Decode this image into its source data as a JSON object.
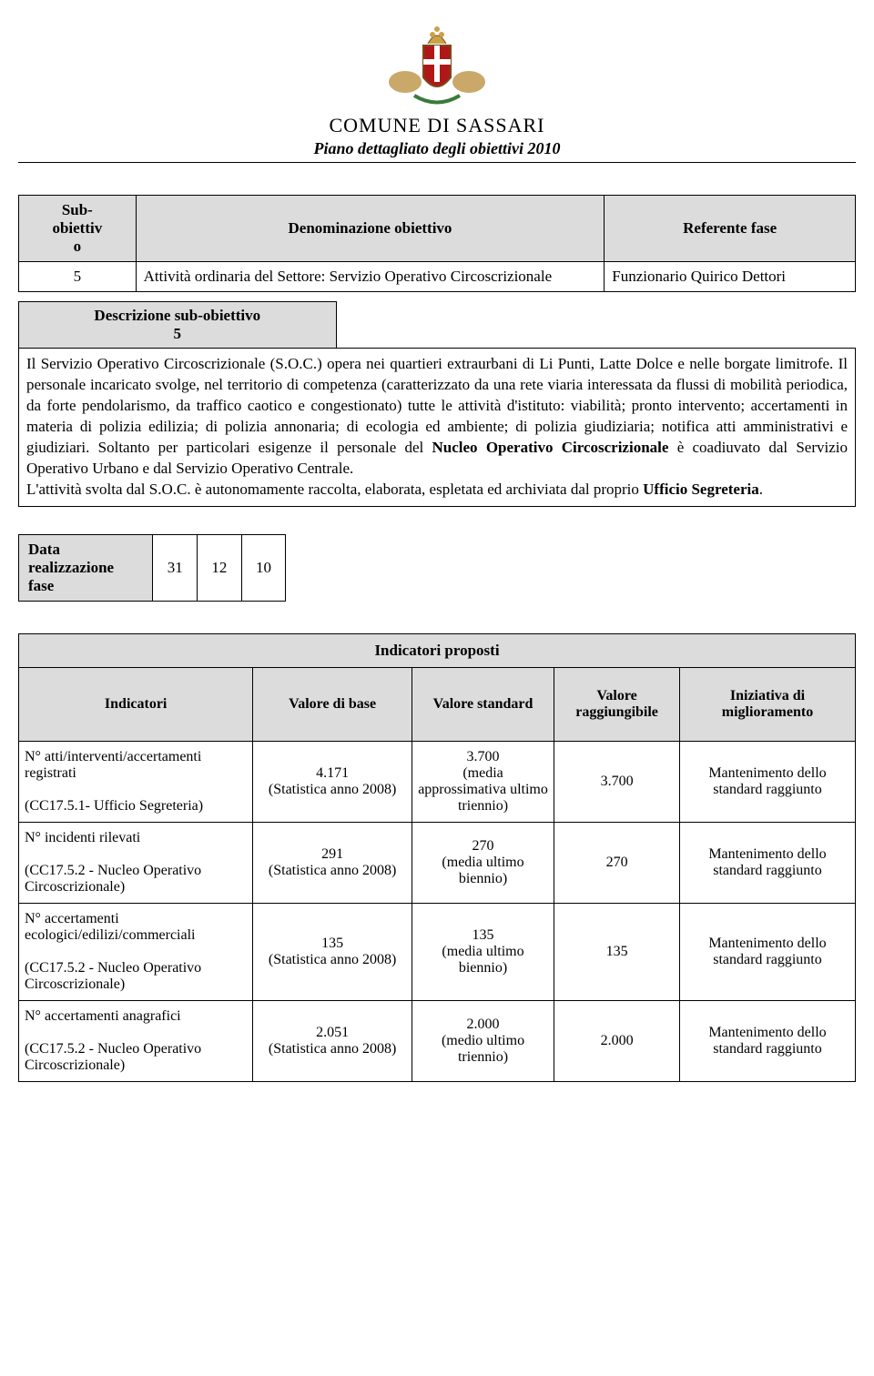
{
  "header": {
    "org": "COMUNE  DI  SASSARI",
    "subtitle": "Piano dettagliato degli obiettivi 2010"
  },
  "objective_table": {
    "headers": [
      "Sub-obiettivo",
      "Denominazione obiettivo",
      "Referente fase"
    ],
    "row": {
      "num": "5",
      "denom": "Attività ordinaria del Settore: Servizio Operativo Circoscrizionale",
      "ref": "Funzionario Quirico Dettori"
    }
  },
  "description": {
    "header": "Descrizione sub-obiettivo 5",
    "body_parts": {
      "p1a": "Il Servizio Operativo Circoscrizionale (S.O.C.) opera nei quartieri extraurbani di Li Punti, Latte Dolce e nelle borgate limitrofe. Il personale incaricato svolge, nel territorio di competenza (caratterizzato da una rete viaria interessata da flussi di mobilità periodica, da forte pendolarismo, da traffico caotico e congestionato) tutte le attività d'istituto: viabilità; pronto intervento; accertamenti in materia di polizia edilizia; di polizia annonaria; di ecologia ed ambiente; di polizia giudiziaria; notifica atti amministrativi e giudiziari. Soltanto per particolari esigenze il personale del ",
      "b1": "Nucleo Operativo Circoscrizionale",
      "p1b": " è coadiuvato dal Servizio Operativo Urbano e dal Servizio Operativo Centrale.",
      "p2a": "L'attività svolta dal S.O.C. è autonomamente raccolta, elaborata, espletata ed archiviata dal proprio ",
      "b2": "Ufficio Segreteria",
      "p2b": "."
    }
  },
  "date_box": {
    "label": "Data realizzazione fase",
    "d": "31",
    "m": "12",
    "y": "10"
  },
  "indicators": {
    "section_title": "Indicatori proposti",
    "columns": [
      "Indicatori",
      "Valore di base",
      "Valore standard",
      "Valore raggiungibile",
      "Iniziativa di miglioramento"
    ],
    "rows": [
      {
        "name_top": "N° atti/interventi/accertamenti registrati",
        "name_bot": "(CC17.5.1- Ufficio Segreteria)",
        "base_top": "4.171",
        "base_bot": "(Statistica anno 2008)",
        "std_top": "3.700",
        "std_bot": "(media approssimativa ultimo triennio)",
        "reach": "3.700",
        "impr": "Mantenimento dello standard raggiunto"
      },
      {
        "name_top": "N° incidenti rilevati",
        "name_bot": "(CC17.5.2 - Nucleo Operativo Circoscrizionale)",
        "base_top": "291",
        "base_bot": "(Statistica anno 2008)",
        "std_top": "270",
        "std_bot": "(media ultimo biennio)",
        "reach": "270",
        "impr": "Mantenimento dello standard raggiunto"
      },
      {
        "name_top": "N° accertamenti ecologici/edilizi/commerciali",
        "name_bot": "(CC17.5.2 - Nucleo Operativo Circoscrizionale)",
        "base_top": "135",
        "base_bot": "(Statistica anno 2008)",
        "std_top": "135",
        "std_bot": "(media ultimo biennio)",
        "reach": "135",
        "impr": "Mantenimento dello standard raggiunto"
      },
      {
        "name_top": "N° accertamenti anagrafici",
        "name_bot": "(CC17.5.2 - Nucleo Operativo Circoscrizionale)",
        "base_top": "2.051",
        "base_bot": "(Statistica anno 2008)",
        "std_top": "2.000",
        "std_bot": "(medio ultimo triennio)",
        "reach": "2.000",
        "impr": "Mantenimento dello standard raggiunto"
      }
    ]
  },
  "colors": {
    "grey_header": "#dcdcdc",
    "text": "#000000",
    "bg": "#ffffff"
  }
}
